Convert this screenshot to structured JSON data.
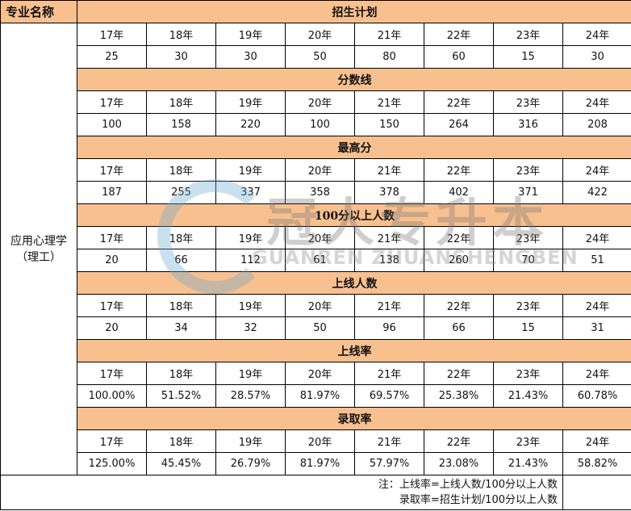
{
  "header": {
    "major_label": "专业名称"
  },
  "major": {
    "name": "应用心理学",
    "sub": "（理工）"
  },
  "years": [
    "17年",
    "18年",
    "19年",
    "20年",
    "21年",
    "22年",
    "23年",
    "24年"
  ],
  "sections": [
    {
      "title": "招生计划",
      "values": [
        "25",
        "30",
        "30",
        "50",
        "80",
        "60",
        "15",
        "30"
      ]
    },
    {
      "title": "分数线",
      "values": [
        "100",
        "158",
        "220",
        "100",
        "150",
        "264",
        "316",
        "208"
      ]
    },
    {
      "title": "最高分",
      "values": [
        "187",
        "255",
        "337",
        "358",
        "378",
        "402",
        "371",
        "422"
      ]
    },
    {
      "title": "100分以上人数",
      "values": [
        "20",
        "66",
        "112",
        "61",
        "138",
        "260",
        "70",
        "51"
      ]
    },
    {
      "title": "上线人数",
      "values": [
        "20",
        "34",
        "32",
        "50",
        "96",
        "66",
        "15",
        "31"
      ]
    },
    {
      "title": "上线率",
      "values": [
        "100.00%",
        "51.52%",
        "28.57%",
        "81.97%",
        "69.57%",
        "25.38%",
        "21.43%",
        "60.78%"
      ]
    },
    {
      "title": "录取率",
      "values": [
        "125.00%",
        "45.45%",
        "26.79%",
        "81.97%",
        "57.97%",
        "23.08%",
        "21.43%",
        "58.82%"
      ]
    }
  ],
  "notes": [
    "注：上线率=上线人数/100分以上人数",
    "录取率=招生计划/100分以上人数"
  ],
  "watermark": {
    "cn": "冠人专升本",
    "en": "GUANREN ZHUANSHENGBEN"
  },
  "colors": {
    "section_header": "#F8C08F"
  }
}
